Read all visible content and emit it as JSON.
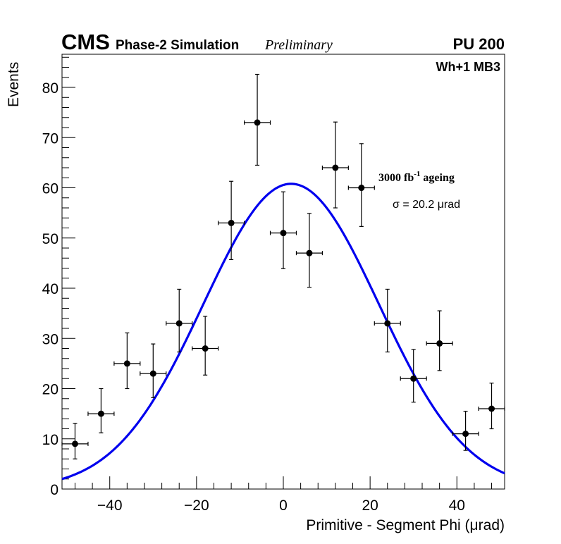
{
  "header": {
    "cms_label": "CMS",
    "subtitle": "Phase-2 Simulation",
    "status": "Preliminary",
    "pileup": "PU 200"
  },
  "annotations": {
    "chamber": "Wh+1 MB3",
    "luminosity_main": "3000 fb",
    "luminosity_sup": "-1",
    "luminosity_suffix": " ageing",
    "sigma": "σ = 20.2 μrad"
  },
  "colors": {
    "fit": "#0000ee",
    "points": "#000000",
    "frame": "#000000"
  },
  "chart_data": {
    "type": "scatter",
    "title": "CMS Phase-2 Simulation Preliminary",
    "xlabel": "Primitive - Segment Phi (μrad)",
    "ylabel": "Events",
    "xlim": [
      -51,
      51
    ],
    "ylim": [
      0,
      86.6
    ],
    "x_ticks": [
      -40,
      -20,
      0,
      20,
      40
    ],
    "x_tick_labels": [
      "−40",
      "−20",
      "0",
      "20",
      "40"
    ],
    "y_ticks": [
      0,
      10,
      20,
      30,
      40,
      50,
      60,
      70,
      80
    ],
    "y_tick_labels": [
      "0",
      "10",
      "20",
      "30",
      "40",
      "50",
      "60",
      "70",
      "80"
    ],
    "grid": false,
    "series": [
      {
        "name": "Simulation",
        "style": "points-with-error-bars",
        "x": [
          -48,
          -42,
          -36,
          -30,
          -24,
          -18,
          -12,
          -6,
          0,
          6,
          12,
          18,
          24,
          30,
          36,
          42,
          48
        ],
        "x_err": [
          3,
          3,
          3,
          3,
          3,
          3,
          3,
          3,
          3,
          3,
          3,
          3,
          3,
          3,
          3,
          3,
          3
        ],
        "y": [
          9,
          15,
          25,
          23,
          33,
          28,
          53,
          73,
          51,
          47,
          64,
          60,
          33,
          22,
          29,
          11,
          16
        ],
        "y_err_low": [
          3.0,
          3.8,
          5.0,
          4.8,
          5.7,
          5.3,
          7.3,
          8.5,
          7.1,
          6.8,
          8.0,
          7.7,
          5.7,
          4.7,
          5.4,
          3.3,
          4.0
        ],
        "y_err_high": [
          4.1,
          5.0,
          6.1,
          5.9,
          6.8,
          6.4,
          8.3,
          9.6,
          8.2,
          7.9,
          9.1,
          8.8,
          6.8,
          5.8,
          6.5,
          4.5,
          5.1
        ]
      },
      {
        "name": "Gaussian fit",
        "style": "line",
        "function": "gaussian",
        "amplitude": 60.8,
        "mean": 1.8,
        "sigma": 20.2
      }
    ],
    "annotations": [
      "PU 200",
      "Wh+1 MB3",
      "3000 fb-1 ageing",
      "σ = 20.2 μrad"
    ]
  }
}
